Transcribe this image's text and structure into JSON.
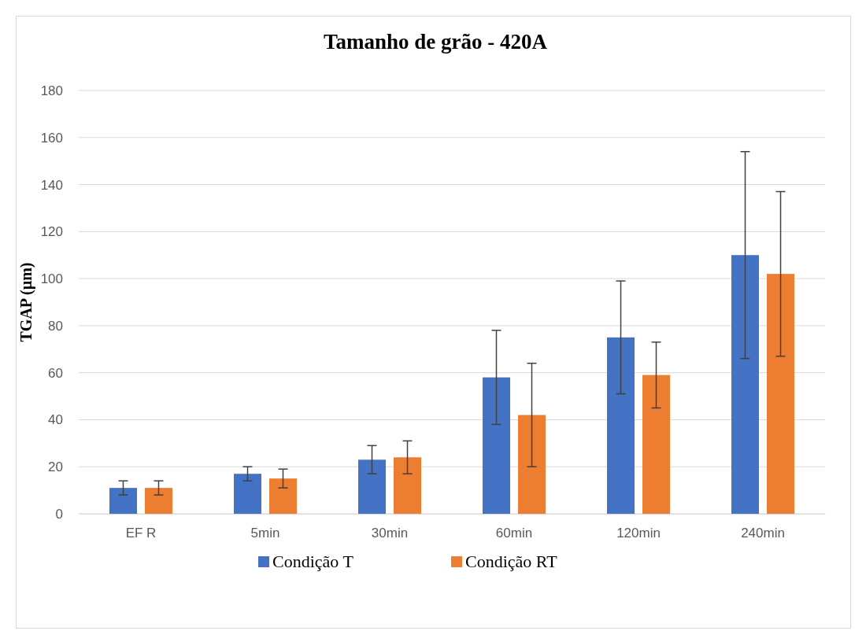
{
  "chart_data": {
    "type": "bar",
    "title": "Tamanho de grão - 420A",
    "ylabel": "TGAP (µm)",
    "categories": [
      "EF R",
      "5min",
      "30min",
      "60min",
      "120min",
      "240min"
    ],
    "series": [
      {
        "name": "Condição T",
        "color": "#4472c4",
        "values": [
          11,
          17,
          23,
          58,
          75,
          110
        ],
        "errors": [
          3,
          3,
          6,
          20,
          24,
          44
        ]
      },
      {
        "name": "Condição RT",
        "color": "#ed7d31",
        "values": [
          11,
          15,
          24,
          42,
          59,
          102
        ],
        "errors": [
          3,
          4,
          7,
          22,
          14,
          35
        ]
      }
    ],
    "ylim": [
      0,
      180
    ],
    "yticks": [
      0,
      20,
      40,
      60,
      80,
      100,
      120,
      140,
      160,
      180
    ],
    "grid": "y",
    "legend": "bottom"
  }
}
